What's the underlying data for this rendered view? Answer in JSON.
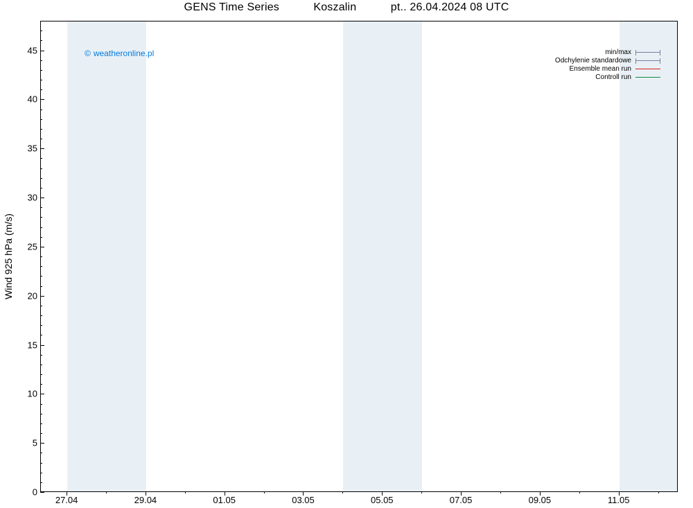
{
  "chart": {
    "type": "line",
    "title_parts": {
      "model": "GENS Time Series",
      "location": "Koszalin",
      "datetime": "pt.. 26.04.2024 08 UTC"
    },
    "title_fontsize": 16,
    "background_color": "#ffffff",
    "plot_border_color": "#000000",
    "band_color": "#e9f0f5",
    "grid_color": "#c8ccd0",
    "watermark": {
      "text": "weatheronline.pl",
      "color": "#007adf"
    },
    "y_axis": {
      "label": "Wind 925 hPa (m/s)",
      "min": 0,
      "max": 48,
      "ticks": [
        0,
        5,
        10,
        15,
        20,
        25,
        30,
        35,
        40,
        45
      ],
      "minor_step": 1,
      "label_fontsize": 14,
      "tick_fontsize": 13
    },
    "x_axis": {
      "start_day_index": 0,
      "total_days": 16.17,
      "tick_labels": [
        "27.04",
        "29.04",
        "01.05",
        "03.05",
        "05.05",
        "07.05",
        "09.05",
        "11.05"
      ],
      "tick_positions_days": [
        0.67,
        2.67,
        4.67,
        6.67,
        8.67,
        10.67,
        12.67,
        14.67
      ],
      "minor_positions_days": [
        1.67,
        3.67,
        5.67,
        7.67,
        9.67,
        11.67,
        13.67,
        15.67
      ],
      "weekend_bands_days": [
        {
          "start": 0.67,
          "end": 2.67
        },
        {
          "start": 7.67,
          "end": 9.67
        },
        {
          "start": 14.67,
          "end": 16.17
        }
      ],
      "tick_fontsize": 13
    },
    "legend": {
      "fontsize": 10,
      "entries": [
        {
          "label": "min/max",
          "style": "errorbar",
          "color": "#7c7c9c"
        },
        {
          "label": "Odchylenie standardowe",
          "style": "errorbar",
          "color": "#7c7c9c"
        },
        {
          "label": "Ensemble mean run",
          "style": "line",
          "color": "#d01c1c"
        },
        {
          "label": "Controll run",
          "style": "line",
          "color": "#0f8a3c"
        }
      ]
    },
    "series": []
  }
}
